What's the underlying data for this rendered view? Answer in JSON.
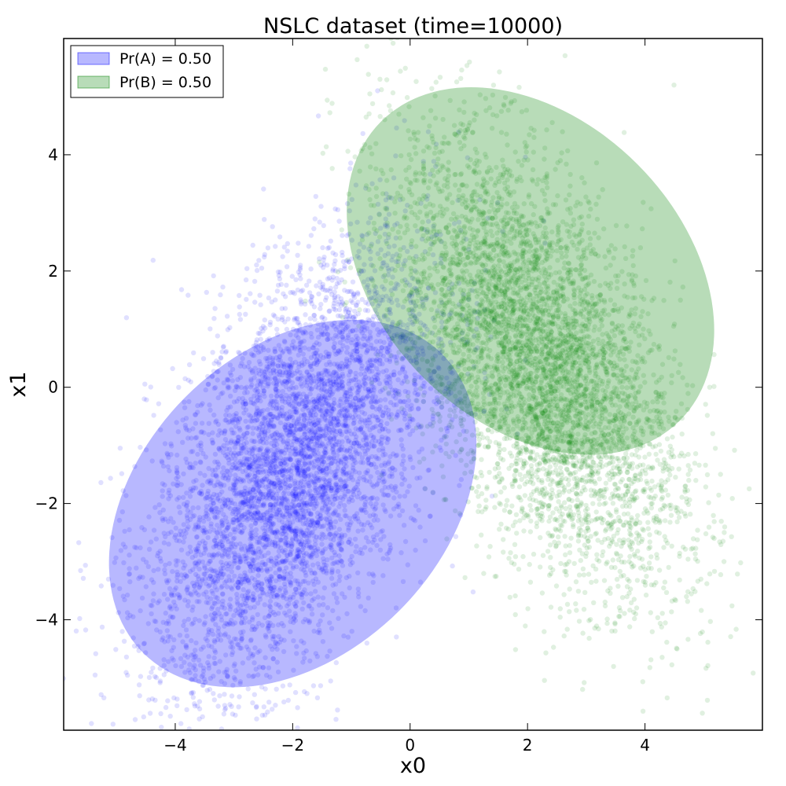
{
  "chart_data": {
    "type": "scatter",
    "title": "NSLC dataset (time=10000)",
    "xlabel": "x0",
    "ylabel": "x1",
    "xlim": [
      -5.9,
      6.0
    ],
    "ylim": [
      -5.9,
      6.0
    ],
    "xticks": [
      -4,
      -2,
      0,
      2,
      4
    ],
    "yticks": [
      -4,
      -2,
      0,
      2,
      4
    ],
    "xtick_labels": [
      "−4",
      "−2",
      "0",
      "2",
      "4"
    ],
    "ytick_labels": [
      "−4",
      "−2",
      "0",
      "2",
      "4"
    ],
    "grid": false,
    "legend_position": "top-left",
    "legend": [
      "Pr(A) = 0.50",
      "Pr(B) = 0.50"
    ],
    "series": [
      {
        "name": "Pr(A) = 0.50",
        "color": "#0000ff",
        "point_count": 5000,
        "mean": [
          -2.0,
          -1.4
        ],
        "std": [
          1.2,
          1.9
        ],
        "correlation": 0.55,
        "ellipse": {
          "center": [
            -2.0,
            -2.0
          ],
          "semi_axes": [
            3.6,
            2.6
          ],
          "angle_deg": 45
        }
      },
      {
        "name": "Pr(B) = 0.50",
        "color": "#008000",
        "point_count": 5000,
        "mean": [
          2.2,
          0.4
        ],
        "std": [
          1.2,
          1.9
        ],
        "correlation": -0.55,
        "ellipse": {
          "center": [
            2.05,
            2.0
          ],
          "semi_axes": [
            3.6,
            2.6
          ],
          "angle_deg": -45
        }
      }
    ]
  }
}
